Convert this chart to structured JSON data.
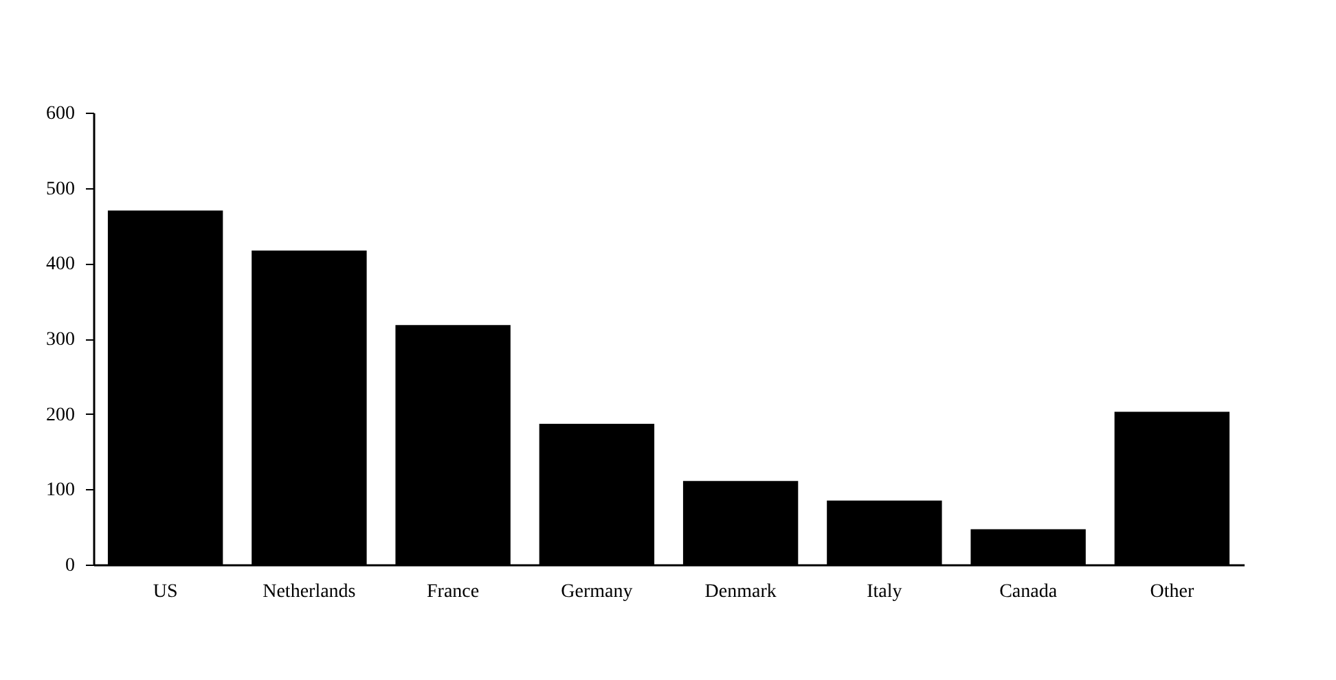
{
  "chart_data": {
    "type": "bar",
    "categories": [
      "US",
      "Netherlands",
      "France",
      "Germany",
      "Denmark",
      "Italy",
      "Canada",
      "Other"
    ],
    "values": [
      470,
      417,
      318,
      187,
      111,
      85,
      47,
      203
    ],
    "color": "#000000",
    "ylim": [
      0,
      600
    ],
    "yticks": [
      0,
      100,
      200,
      300,
      400,
      500,
      600
    ],
    "grid": false
  }
}
